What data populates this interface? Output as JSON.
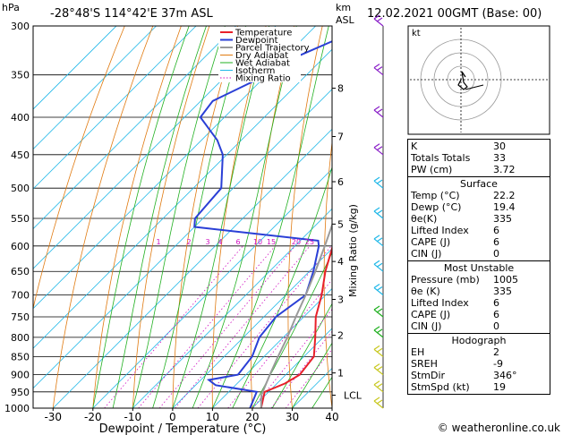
{
  "header": {
    "location": "-28°48'S  114°42'E  37m  ASL",
    "datetime": "12.02.2021  00GMT  (Base: 00)",
    "hpa_label": "hPa",
    "km_label": "km",
    "asl_label": "ASL",
    "xlabel": "Dewpoint / Temperature (°C)",
    "mixing_label": "Mixing Ratio (g/kg)",
    "credit": "© weatheronline.co.uk",
    "hodo_label": "kt"
  },
  "colors": {
    "temperature": "#e8202a",
    "dewpoint": "#2a3fd6",
    "parcel": "#9a9a9a",
    "dry_adiabat": "#e07a10",
    "wet_adiabat": "#20b020",
    "isotherm": "#20b8e8",
    "mixing_ratio": "#d010c0",
    "wind_barbs": "#8a20c8"
  },
  "chart_data": {
    "type": "line",
    "title": "",
    "xlabel": "Dewpoint / Temperature (°C)",
    "ylabel": "hPa",
    "xlim": [
      -35,
      40
    ],
    "ylim": [
      1000,
      300
    ],
    "y_scale": "log",
    "x_ticks": [
      "-30",
      "-20",
      "-10",
      "0",
      "10",
      "20",
      "30",
      "40"
    ],
    "p_levels": [
      300,
      350,
      400,
      450,
      500,
      550,
      600,
      650,
      700,
      750,
      800,
      850,
      900,
      950,
      1000
    ],
    "km_ticks": [
      {
        "label": "8",
        "p": 365
      },
      {
        "label": "7",
        "p": 425
      },
      {
        "label": "6",
        "p": 490
      },
      {
        "label": "5",
        "p": 560
      },
      {
        "label": "4",
        "p": 630
      },
      {
        "label": "3",
        "p": 710
      },
      {
        "label": "2",
        "p": 795
      },
      {
        "label": "1",
        "p": 895
      },
      {
        "label": "LCL",
        "p": 960
      }
    ],
    "mixing_ratio_labels": [
      "1",
      "2",
      "3",
      "4",
      "6",
      "10",
      "15",
      "20",
      "25"
    ],
    "series": [
      {
        "name": "Temperature",
        "points": [
          {
            "p": 1000,
            "t": 22.2
          },
          {
            "p": 950,
            "t": 19.0
          },
          {
            "p": 925,
            "t": 22.0
          },
          {
            "p": 900,
            "t": 23.5
          },
          {
            "p": 850,
            "t": 22.5
          },
          {
            "p": 800,
            "t": 18.0
          },
          {
            "p": 750,
            "t": 13.0
          },
          {
            "p": 700,
            "t": 9.0
          },
          {
            "p": 650,
            "t": 4.0
          },
          {
            "p": 600,
            "t": -0.5
          },
          {
            "p": 580,
            "t": -3.0
          },
          {
            "p": 550,
            "t": -4.0
          },
          {
            "p": 500,
            "t": -7.5
          },
          {
            "p": 450,
            "t": -13.0
          },
          {
            "p": 400,
            "t": -19.0
          },
          {
            "p": 380,
            "t": -20.0
          },
          {
            "p": 350,
            "t": -25.5
          },
          {
            "p": 330,
            "t": -31.0
          },
          {
            "p": 300,
            "t": -37.5
          }
        ]
      },
      {
        "name": "Dewpoint",
        "points": [
          {
            "p": 1000,
            "t": 19.4
          },
          {
            "p": 950,
            "t": 17.0
          },
          {
            "p": 930,
            "t": 5.0
          },
          {
            "p": 915,
            "t": 2.0
          },
          {
            "p": 900,
            "t": 8.0
          },
          {
            "p": 850,
            "t": 7.0
          },
          {
            "p": 800,
            "t": 4.0
          },
          {
            "p": 750,
            "t": 3.0
          },
          {
            "p": 700,
            "t": 5.0
          },
          {
            "p": 650,
            "t": 1.0
          },
          {
            "p": 600,
            "t": -4.0
          },
          {
            "p": 590,
            "t": -5.5
          },
          {
            "p": 565,
            "t": -40.0
          },
          {
            "p": 550,
            "t": -42.0
          },
          {
            "p": 500,
            "t": -43.0
          },
          {
            "p": 450,
            "t": -51.0
          },
          {
            "p": 430,
            "t": -56.0
          },
          {
            "p": 400,
            "t": -66.0
          },
          {
            "p": 380,
            "t": -67.0
          },
          {
            "p": 350,
            "t": -60.0
          },
          {
            "p": 340,
            "t": -60.0
          },
          {
            "p": 300,
            "t": -47.0
          }
        ]
      },
      {
        "name": "Parcel Trajectory",
        "points": [
          {
            "p": 1000,
            "t": 22.2
          },
          {
            "p": 960,
            "t": 19.0
          },
          {
            "p": 900,
            "t": 16.0
          },
          {
            "p": 850,
            "t": 13.5
          },
          {
            "p": 800,
            "t": 11.0
          },
          {
            "p": 750,
            "t": 8.0
          },
          {
            "p": 700,
            "t": 5.0
          },
          {
            "p": 650,
            "t": 1.5
          },
          {
            "p": 600,
            "t": -2.5
          },
          {
            "p": 550,
            "t": -7.0
          },
          {
            "p": 500,
            "t": -12.5
          },
          {
            "p": 450,
            "t": -18.5
          },
          {
            "p": 400,
            "t": -25.5
          },
          {
            "p": 350,
            "t": -33.5
          },
          {
            "p": 300,
            "t": -43.0
          }
        ]
      }
    ],
    "legend": [
      "Temperature",
      "Dewpoint",
      "Parcel Trajectory",
      "Dry Adiabat",
      "Wet Adiabat",
      "Isotherm",
      "Mixing Ratio"
    ],
    "legend_position": "top-left"
  },
  "stats_table": [
    {
      "label": "K",
      "value": "30"
    },
    {
      "label": "Totals Totals",
      "value": "33"
    },
    {
      "label": "PW (cm)",
      "value": "3.72"
    }
  ],
  "surface": {
    "title": "Surface",
    "rows": [
      {
        "label": "Temp (°C)",
        "value": "22.2"
      },
      {
        "label": "Dewp (°C)",
        "value": "19.4"
      },
      {
        "label": "θe(K)",
        "value": "335"
      },
      {
        "label": "Lifted Index",
        "value": "6"
      },
      {
        "label": "CAPE (J)",
        "value": "6"
      },
      {
        "label": "CIN (J)",
        "value": "0"
      }
    ]
  },
  "most_unstable": {
    "title": "Most Unstable",
    "rows": [
      {
        "label": "Pressure (mb)",
        "value": "1005"
      },
      {
        "label": "θe (K)",
        "value": "335"
      },
      {
        "label": "Lifted Index",
        "value": "6"
      },
      {
        "label": "CAPE (J)",
        "value": "6"
      },
      {
        "label": "CIN (J)",
        "value": "0"
      }
    ]
  },
  "hodograph": {
    "title": "Hodograph",
    "rows": [
      {
        "label": "EH",
        "value": "2"
      },
      {
        "label": "SREH",
        "value": "-9"
      },
      {
        "label": "StmDir",
        "value": "346°"
      },
      {
        "label": "StmSpd (kt)",
        "value": "19"
      }
    ]
  }
}
